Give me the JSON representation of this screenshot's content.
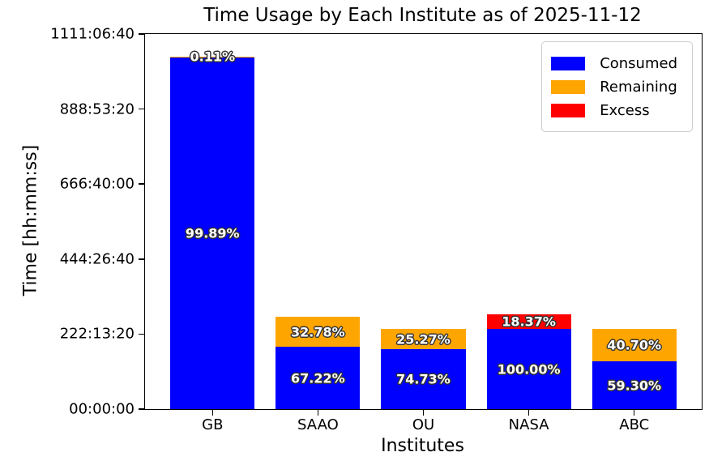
{
  "chart_data": {
    "type": "bar",
    "stacked": true,
    "title": "Time Usage by Each Institute as of 2025-11-12",
    "xlabel": "Institutes",
    "ylabel": "Time [hh:mm:ss]",
    "categories": [
      "GB",
      "SAAO",
      "OU",
      "NASA",
      "ABC"
    ],
    "y_axis": {
      "tick_labels": [
        "00:00:00",
        "222:13:20",
        "444:26:40",
        "666:40:00",
        "888:53:20",
        "1111:06:40"
      ],
      "lim_seconds": [
        0,
        4000000
      ],
      "grid": false
    },
    "legend": {
      "position": "upper-right",
      "entries": [
        {
          "label": "Consumed",
          "color": "#0000ff"
        },
        {
          "label": "Remaining",
          "color": "#ffa500"
        },
        {
          "label": "Excess",
          "color": "#ff0000"
        }
      ]
    },
    "bars": [
      {
        "category": "GB",
        "segments": [
          {
            "series": "Consumed",
            "color": "#0000ff",
            "seconds_est": 3758000,
            "label": "99.89%"
          },
          {
            "series": "Remaining",
            "color": "#ffa500",
            "seconds_est": 4100,
            "label": "0.11%"
          }
        ]
      },
      {
        "category": "SAAO",
        "segments": [
          {
            "series": "Consumed",
            "color": "#0000ff",
            "seconds_est": 662000,
            "label": "67.22%"
          },
          {
            "series": "Remaining",
            "color": "#ffa500",
            "seconds_est": 323000,
            "label": "32.78%"
          }
        ]
      },
      {
        "category": "OU",
        "segments": [
          {
            "series": "Consumed",
            "color": "#0000ff",
            "seconds_est": 639000,
            "label": "74.73%"
          },
          {
            "series": "Remaining",
            "color": "#ffa500",
            "seconds_est": 216000,
            "label": "25.27%"
          }
        ]
      },
      {
        "category": "NASA",
        "segments": [
          {
            "series": "Consumed",
            "color": "#0000ff",
            "seconds_est": 855000,
            "label": "100.00%"
          },
          {
            "series": "Excess",
            "color": "#ff0000",
            "seconds_est": 157000,
            "label": "18.37%"
          }
        ]
      },
      {
        "category": "ABC",
        "segments": [
          {
            "series": "Consumed",
            "color": "#0000ff",
            "seconds_est": 507000,
            "label": "59.30%"
          },
          {
            "series": "Remaining",
            "color": "#ffa500",
            "seconds_est": 348000,
            "label": "40.70%"
          }
        ]
      }
    ]
  }
}
